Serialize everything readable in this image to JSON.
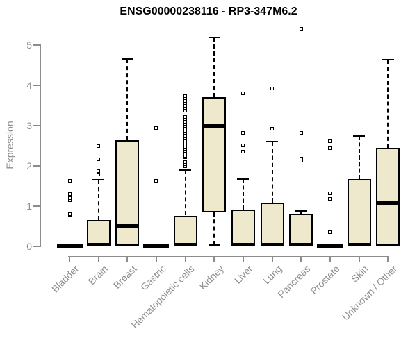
{
  "chart_data": {
    "type": "boxplot",
    "title": "ENSG00000238116 - RP3-347M6.2",
    "ylabel": "Expression",
    "xlabel": "",
    "ylim": [
      0,
      5.4
    ],
    "yticks": [
      0,
      1,
      2,
      3,
      4,
      5
    ],
    "grid": false,
    "legend": false,
    "categories": [
      "Bladder",
      "Brain",
      "Breast",
      "Gastric",
      "Hematopoietic cells",
      "Kidney",
      "Liver",
      "Lung",
      "Pancreas",
      "Prostate",
      "Skin",
      "Unknown / Other"
    ],
    "series": [
      {
        "name": "Bladder",
        "q1": 0,
        "median": 0,
        "q3": 0,
        "whisker_low": 0,
        "whisker_high": 0,
        "outliers": [
          0.76,
          0.79,
          1.13,
          1.18,
          1.29,
          1.62
        ]
      },
      {
        "name": "Brain",
        "q1": 0,
        "median": 0.03,
        "q3": 0.64,
        "whisker_low": 0,
        "whisker_high": 1.63,
        "outliers": [
          1.76,
          1.86,
          2.14,
          2.48
        ]
      },
      {
        "name": "Breast",
        "q1": 0,
        "median": 0.49,
        "q3": 2.62,
        "whisker_low": 0,
        "whisker_high": 4.64,
        "outliers": []
      },
      {
        "name": "Gastric",
        "q1": 0,
        "median": 0,
        "q3": 0,
        "whisker_low": 0,
        "whisker_high": 0,
        "outliers": [
          1.61,
          2.93
        ]
      },
      {
        "name": "Hematopoietic cells",
        "q1": 0,
        "median": 0.03,
        "q3": 0.75,
        "whisker_low": 0,
        "whisker_high": 1.88,
        "outliers": [
          1.97,
          2.02,
          2.08,
          2.19,
          2.24,
          2.29,
          2.36,
          2.41,
          2.46,
          2.51,
          2.56,
          2.61,
          2.66,
          2.71,
          2.8,
          2.85,
          2.91,
          2.97,
          3.02,
          3.08,
          3.14,
          3.2,
          3.36,
          3.42,
          3.48,
          3.54,
          3.6,
          3.66,
          3.72
        ]
      },
      {
        "name": "Kidney",
        "q1": 0.82,
        "median": 2.97,
        "q3": 3.69,
        "whisker_low": 0.02,
        "whisker_high": 5.18,
        "outliers": []
      },
      {
        "name": "Liver",
        "q1": 0,
        "median": 0.03,
        "q3": 0.9,
        "whisker_low": 0,
        "whisker_high": 1.66,
        "outliers": [
          2.33,
          2.5,
          2.8,
          3.78
        ]
      },
      {
        "name": "Lung",
        "q1": 0,
        "median": 0.03,
        "q3": 1.07,
        "whisker_low": 0,
        "whisker_high": 2.58,
        "outliers": [
          2.91,
          3.91
        ]
      },
      {
        "name": "Pancreas",
        "q1": 0,
        "median": 0.03,
        "q3": 0.8,
        "whisker_low": 0,
        "whisker_high": 0.87,
        "outliers": [
          2.11,
          2.16,
          2.8,
          5.39
        ]
      },
      {
        "name": "Prostate",
        "q1": 0,
        "median": 0,
        "q3": 0,
        "whisker_low": 0,
        "whisker_high": 0,
        "outliers": [
          0.34,
          1.16,
          1.3,
          2.43,
          2.59
        ]
      },
      {
        "name": "Skin",
        "q1": 0,
        "median": 0.03,
        "q3": 1.65,
        "whisker_low": 0,
        "whisker_high": 2.72,
        "outliers": []
      },
      {
        "name": "Unknown / Other",
        "q1": 0,
        "median": 1.06,
        "q3": 2.43,
        "whisker_low": 0,
        "whisker_high": 4.62,
        "outliers": []
      }
    ],
    "colors": {
      "box_fill": "#EEE8CD",
      "box_border": "#000000",
      "median": "#000000",
      "whisker": "#000000",
      "axis": "#8c8c8c",
      "tick_text": "#8f8f8f",
      "title_text": "#000000"
    }
  }
}
